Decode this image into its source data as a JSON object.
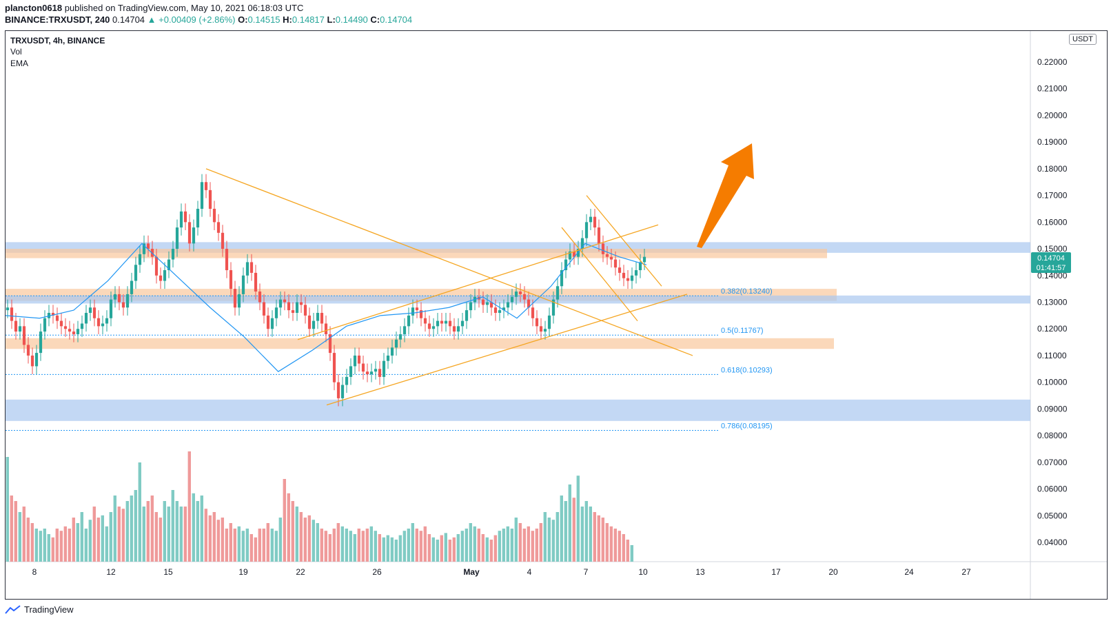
{
  "header": {
    "publisher": "plancton0618",
    "published_text": "published on TradingView.com, May 10, 2021 06:18:03 UTC",
    "symbol_full": "BINANCE:TRXUSDT, 240",
    "last": "0.14704",
    "change": "▲ +0.00409 (+2.86%)",
    "o_label": "O:",
    "o": "0.14515",
    "h_label": "H:",
    "h": "0.14817",
    "l_label": "L:",
    "l": "0.14490",
    "c_label": "C:",
    "c": "0.14704"
  },
  "legend": {
    "title": "TRXUSDT, 4h, BINANCE",
    "vol": "Vol",
    "ema": "EMA"
  },
  "currency_label": "USDT",
  "price_tag": {
    "price": "0.14704",
    "countdown": "01:41:57"
  },
  "footer": {
    "brand": "TradingView"
  },
  "colors": {
    "up": "#26a69a",
    "down": "#ef5350",
    "ema": "#2196f3",
    "orange_zone": "#f9c79c",
    "blue_zone": "#aac8f0",
    "trendline": "#f5a623",
    "arrow": "#f57c00",
    "fib": "#2196f3"
  },
  "chart_data": {
    "type": "candlestick",
    "ylim": [
      0.03,
      0.235
    ],
    "y_ticks": [
      "0.04000",
      "0.05000",
      "0.06000",
      "0.07000",
      "0.08000",
      "0.09000",
      "0.10000",
      "0.11000",
      "0.12000",
      "0.13000",
      "0.14000",
      "0.15000",
      "0.16000",
      "0.17000",
      "0.18000",
      "0.19000",
      "0.20000",
      "0.21000",
      "0.22000"
    ],
    "x_ticks": [
      "8",
      "12",
      "15",
      "19",
      "22",
      "26",
      "May",
      "4",
      "7",
      "10",
      "13",
      "17",
      "20",
      "24",
      "27"
    ],
    "fib_levels": [
      {
        "label": "0.382(0.13240)",
        "value": 0.1324
      },
      {
        "label": "0.5(0.11767)",
        "value": 0.11767
      },
      {
        "label": "0.618(0.10293)",
        "value": 0.10293
      },
      {
        "label": "0.786(0.08195)",
        "value": 0.08195
      }
    ],
    "zones": [
      {
        "kind": "blue",
        "low": 0.1485,
        "high": 0.1525
      },
      {
        "kind": "orange",
        "low": 0.1465,
        "high": 0.15
      },
      {
        "kind": "orange",
        "low": 0.1305,
        "high": 0.135
      },
      {
        "kind": "blue",
        "low": 0.1295,
        "high": 0.1325
      },
      {
        "kind": "orange",
        "low": 0.1125,
        "high": 0.1165
      },
      {
        "kind": "blue",
        "low": 0.0855,
        "high": 0.0935
      }
    ],
    "candles_4h_close": [
      0.128,
      0.123,
      0.119,
      0.121,
      0.114,
      0.11,
      0.106,
      0.111,
      0.119,
      0.124,
      0.126,
      0.125,
      0.123,
      0.121,
      0.12,
      0.119,
      0.118,
      0.12,
      0.122,
      0.126,
      0.128,
      0.124,
      0.121,
      0.122,
      0.124,
      0.131,
      0.133,
      0.13,
      0.128,
      0.133,
      0.138,
      0.144,
      0.148,
      0.152,
      0.15,
      0.147,
      0.14,
      0.138,
      0.142,
      0.146,
      0.15,
      0.158,
      0.164,
      0.16,
      0.152,
      0.158,
      0.165,
      0.175,
      0.172,
      0.165,
      0.16,
      0.156,
      0.15,
      0.142,
      0.135,
      0.128,
      0.133,
      0.14,
      0.145,
      0.141,
      0.134,
      0.13,
      0.125,
      0.12,
      0.124,
      0.128,
      0.131,
      0.13,
      0.127,
      0.126,
      0.13,
      0.129,
      0.125,
      0.12,
      0.123,
      0.126,
      0.122,
      0.118,
      0.111,
      0.1,
      0.094,
      0.099,
      0.102,
      0.106,
      0.11,
      0.107,
      0.104,
      0.103,
      0.104,
      0.105,
      0.102,
      0.108,
      0.11,
      0.113,
      0.116,
      0.118,
      0.121,
      0.125,
      0.128,
      0.127,
      0.124,
      0.122,
      0.12,
      0.121,
      0.123,
      0.122,
      0.123,
      0.121,
      0.119,
      0.121,
      0.123,
      0.127,
      0.13,
      0.132,
      0.131,
      0.129,
      0.13,
      0.128,
      0.126,
      0.127,
      0.128,
      0.13,
      0.132,
      0.134,
      0.133,
      0.131,
      0.128,
      0.124,
      0.121,
      0.119,
      0.12,
      0.125,
      0.131,
      0.136,
      0.142,
      0.146,
      0.149,
      0.147,
      0.15,
      0.154,
      0.16,
      0.162,
      0.158,
      0.152,
      0.148,
      0.147,
      0.146,
      0.143,
      0.141,
      0.139,
      0.138,
      0.14,
      0.142,
      0.145,
      0.147
    ],
    "ema_path": [
      [
        0,
        0.125
      ],
      [
        20,
        0.124
      ],
      [
        40,
        0.127
      ],
      [
        60,
        0.138
      ],
      [
        80,
        0.152
      ],
      [
        100,
        0.14
      ],
      [
        120,
        0.128
      ],
      [
        140,
        0.117
      ],
      [
        160,
        0.104
      ],
      [
        180,
        0.112
      ],
      [
        200,
        0.121
      ],
      [
        220,
        0.125
      ],
      [
        240,
        0.126
      ],
      [
        260,
        0.128
      ],
      [
        280,
        0.132
      ],
      [
        300,
        0.124
      ],
      [
        320,
        0.136
      ],
      [
        340,
        0.152
      ],
      [
        360,
        0.147
      ],
      [
        376,
        0.144
      ]
    ],
    "volume_relative": [
      0.95,
      0.6,
      0.55,
      0.45,
      0.5,
      0.4,
      0.35,
      0.3,
      0.28,
      0.3,
      0.25,
      0.22,
      0.3,
      0.28,
      0.32,
      0.3,
      0.4,
      0.35,
      0.45,
      0.3,
      0.38,
      0.5,
      0.4,
      0.42,
      0.32,
      0.45,
      0.6,
      0.5,
      0.48,
      0.55,
      0.6,
      0.65,
      0.9,
      0.5,
      0.55,
      0.6,
      0.45,
      0.4,
      0.55,
      0.5,
      0.65,
      0.55,
      0.5,
      0.5,
      1.0,
      0.62,
      0.55,
      0.6,
      0.48,
      0.42,
      0.45,
      0.38,
      0.4,
      0.3,
      0.35,
      0.3,
      0.32,
      0.28,
      0.3,
      0.25,
      0.22,
      0.3,
      0.3,
      0.35,
      0.3,
      0.28,
      0.4,
      0.75,
      0.62,
      0.55,
      0.5,
      0.45,
      0.4,
      0.42,
      0.38,
      0.35,
      0.3,
      0.28,
      0.25,
      0.3,
      0.35,
      0.32,
      0.3,
      0.28,
      0.25,
      0.3,
      0.28,
      0.3,
      0.32,
      0.28,
      0.25,
      0.22,
      0.24,
      0.22,
      0.2,
      0.24,
      0.28,
      0.3,
      0.35,
      0.3,
      0.28,
      0.32,
      0.25,
      0.22,
      0.2,
      0.24,
      0.26,
      0.2,
      0.22,
      0.25,
      0.28,
      0.3,
      0.35,
      0.32,
      0.3,
      0.25,
      0.22,
      0.2,
      0.24,
      0.28,
      0.3,
      0.32,
      0.3,
      0.4,
      0.35,
      0.3,
      0.32,
      0.28,
      0.3,
      0.35,
      0.45,
      0.4,
      0.38,
      0.45,
      0.6,
      0.55,
      0.7,
      0.58,
      0.78,
      0.5,
      0.55,
      0.5,
      0.45,
      0.42,
      0.4,
      0.35,
      0.32,
      0.3,
      0.28,
      0.25,
      0.2,
      0.15
    ]
  }
}
